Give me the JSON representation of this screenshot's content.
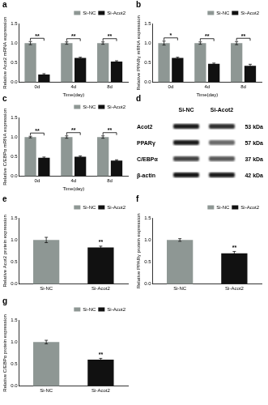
{
  "chart_data": [
    {
      "panel": "a",
      "type": "bar",
      "y_label": "Relative Acot2 mRNA expression",
      "x_label": "Time(day)",
      "categories": [
        "0d",
        "4d",
        "8d"
      ],
      "series": [
        {
          "name": "Si-NC",
          "color": "#8e9794",
          "values": [
            1.0,
            1.0,
            1.0
          ],
          "errors": [
            0.04,
            0.03,
            0.03
          ]
        },
        {
          "name": "Si-Acot2",
          "color": "#111111",
          "values": [
            0.2,
            0.62,
            0.53
          ],
          "errors": [
            0.02,
            0.02,
            0.02
          ]
        }
      ],
      "ylim": [
        0,
        1.5
      ],
      "yticks": [
        {
          "value": 0,
          "label": "0.0"
        },
        0.5,
        {
          "value": 1,
          "label": "1.0"
        },
        1.5
      ],
      "grid": false,
      "legend": "upper right",
      "annotations": [
        {
          "x": "0d",
          "text": "**"
        },
        {
          "x": "4d",
          "text": "**"
        },
        {
          "x": "8d",
          "text": "**"
        }
      ]
    },
    {
      "panel": "b",
      "type": "bar",
      "y_label": "Relative PPARγ mRNA expression",
      "x_label": "Time(day)",
      "categories": [
        "0d",
        "4d",
        "8d"
      ],
      "series": [
        {
          "name": "Si-NC",
          "color": "#8e9794",
          "values": [
            1.0,
            1.0,
            1.0
          ],
          "errors": [
            0.05,
            0.03,
            0.04
          ]
        },
        {
          "name": "Si-Acot2",
          "color": "#111111",
          "values": [
            0.62,
            0.47,
            0.42
          ],
          "errors": [
            0.02,
            0.02,
            0.04
          ]
        }
      ],
      "ylim": [
        0,
        1.5
      ],
      "yticks": [
        {
          "value": 0,
          "label": "0.0"
        },
        0.5,
        {
          "value": 1,
          "label": "1.0"
        },
        1.5
      ],
      "grid": false,
      "legend": "upper right",
      "annotations": [
        {
          "x": "0d",
          "text": "*"
        },
        {
          "x": "4d",
          "text": "**"
        },
        {
          "x": "8d",
          "text": "**"
        }
      ]
    },
    {
      "panel": "c",
      "type": "bar",
      "y_label": "Relative C/EBPα mRNA expression",
      "x_label": "Time(day)",
      "categories": [
        "0d",
        "4d",
        "8d"
      ],
      "series": [
        {
          "name": "Si-NC",
          "color": "#8e9794",
          "values": [
            1.0,
            1.0,
            1.0
          ],
          "errors": [
            0.02,
            0.03,
            0.03
          ]
        },
        {
          "name": "Si-Acot2",
          "color": "#111111",
          "values": [
            0.47,
            0.5,
            0.4
          ],
          "errors": [
            0.02,
            0.02,
            0.02
          ]
        }
      ],
      "ylim": [
        0,
        1.5
      ],
      "yticks": [
        {
          "value": 0,
          "label": "0.0"
        },
        0.5,
        {
          "value": 1,
          "label": "1.0"
        },
        1.5
      ],
      "grid": false,
      "legend": "upper right",
      "annotations": [
        {
          "x": "0d",
          "text": "**"
        },
        {
          "x": "4d",
          "text": "**"
        },
        {
          "x": "8d",
          "text": "**"
        }
      ]
    },
    {
      "panel": "e",
      "type": "bar",
      "y_label": "Relative Acot2 protein expression",
      "categories": [
        "Si-NC",
        "Si-Acot2"
      ],
      "values": [
        1.0,
        0.83
      ],
      "errors": [
        0.06,
        0.03
      ],
      "colors": [
        "#8e9794",
        "#111111"
      ],
      "ylim": [
        0,
        1.5
      ],
      "yticks": [
        {
          "value": 0,
          "label": "0.0"
        },
        0.5,
        {
          "value": 1,
          "label": "1.0"
        },
        1.5
      ],
      "grid": false,
      "legend": "upper right",
      "annotations": [
        {
          "x": "Si-Acot2",
          "text": "**"
        }
      ]
    },
    {
      "panel": "f",
      "type": "bar",
      "y_label": "Relative PPARγ protein expression",
      "categories": [
        "Si-NC",
        "Si-Acot2"
      ],
      "values": [
        1.0,
        0.7
      ],
      "errors": [
        0.03,
        0.04
      ],
      "colors": [
        "#8e9794",
        "#111111"
      ],
      "ylim": [
        0,
        1.5
      ],
      "yticks": [
        {
          "value": 0,
          "label": "0.0"
        },
        0.5,
        {
          "value": 1,
          "label": "1.0"
        },
        1.5
      ],
      "grid": false,
      "legend": "upper right",
      "annotations": [
        {
          "x": "Si-Acot2",
          "text": "**"
        }
      ]
    },
    {
      "panel": "g",
      "type": "bar",
      "y_label": "Relative C/EBPα protein expression",
      "categories": [
        "Si-NC",
        "Si-Acot2"
      ],
      "values": [
        1.0,
        0.6
      ],
      "errors": [
        0.04,
        0.03
      ],
      "colors": [
        "#8e9794",
        "#111111"
      ],
      "ylim": [
        0,
        1.5
      ],
      "yticks": [
        {
          "value": 0,
          "label": "0.0"
        },
        0.5,
        {
          "value": 1,
          "label": "1.0"
        },
        1.5
      ],
      "grid": false,
      "legend": "upper right",
      "annotations": [
        {
          "x": "Si-Acot2",
          "text": "**"
        }
      ]
    }
  ],
  "blot": {
    "panel": "d",
    "lanes": [
      "Si-NC",
      "Si-Acot2"
    ],
    "rows": [
      {
        "name": "Acot2",
        "size": "53 kDa"
      },
      {
        "name": "PPARγ",
        "size": "57 kDa"
      },
      {
        "name": "C/EBPα",
        "size": "37 kDa"
      },
      {
        "name": "β-actin",
        "size": "42 kDa"
      }
    ]
  }
}
